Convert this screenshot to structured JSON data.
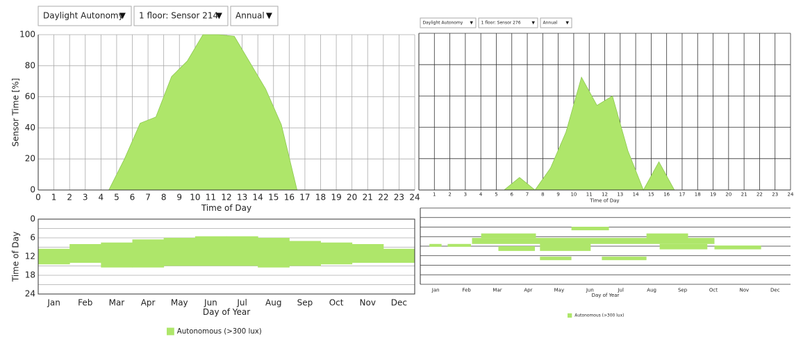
{
  "controls": [
    [
      "Daylight Autonomy",
      "1 floor: Sensor 214",
      "Annual"
    ],
    [
      "Daylight Autonomy",
      "1 floor: Sensor 276",
      "Annual"
    ]
  ],
  "chart_data": [
    {
      "type": "area",
      "x_label": "Time of Day",
      "y_label": "Sensor Time [%]",
      "x": [
        0,
        4.5,
        5.5,
        6.5,
        7.5,
        8.5,
        9.5,
        10.5,
        11.5,
        12.5,
        13.5,
        14.5,
        15.5,
        16.5,
        24
      ],
      "values": [
        0,
        0,
        20,
        43,
        47,
        73,
        83,
        100,
        100,
        99,
        82,
        65,
        42,
        0,
        0
      ],
      "color": "#aee66a",
      "xlim": [
        0,
        24
      ],
      "ylim": [
        0,
        100
      ],
      "xticks": [
        0,
        1,
        2,
        3,
        4,
        5,
        6,
        7,
        8,
        9,
        10,
        11,
        12,
        13,
        14,
        15,
        16,
        17,
        18,
        19,
        20,
        21,
        22,
        23,
        24
      ],
      "yticks": [
        0,
        20,
        40,
        60,
        80,
        100
      ],
      "grid": true
    },
    {
      "type": "band",
      "x_label": "Day of Year",
      "y_label": "Time of Day",
      "categories": [
        "Jan",
        "Feb",
        "Mar",
        "Apr",
        "May",
        "Jun",
        "Jul",
        "Aug",
        "Sep",
        "Oct",
        "Nov",
        "Dec"
      ],
      "ylim": [
        24,
        0
      ],
      "yticks": [
        0,
        6,
        12,
        18,
        24
      ],
      "ygrid": [
        3,
        9,
        15,
        21
      ],
      "series": [
        {
          "name": "Autonomous (>300 lux)",
          "color": "#aee66a",
          "start": [
            9.5,
            8,
            7.5,
            6.5,
            6,
            5.5,
            5.5,
            6,
            7,
            7.5,
            8,
            9.5
          ],
          "end": [
            14.5,
            14,
            15.5,
            15.5,
            15,
            15,
            15,
            15.5,
            15,
            14.5,
            14,
            14
          ]
        }
      ]
    },
    {
      "type": "area",
      "x_label": "Time of Day",
      "x": [
        0,
        5.5,
        6.5,
        7.5,
        8.5,
        9.5,
        10.5,
        11.5,
        12.5,
        13.5,
        14.5,
        15.5,
        16.5,
        24
      ],
      "values": [
        0,
        0,
        8,
        0,
        14,
        37,
        72,
        54,
        60,
        25,
        0,
        18,
        0,
        0
      ],
      "color": "#aee66a",
      "xlim": [
        0,
        24
      ],
      "ylim": [
        0,
        100
      ],
      "xticks": [
        1,
        2,
        3,
        4,
        5,
        6,
        7,
        8,
        9,
        10,
        11,
        12,
        13,
        14,
        15,
        16,
        17,
        18,
        19,
        20,
        21,
        22,
        23,
        24
      ],
      "ygrid": [
        0,
        20,
        40,
        60,
        80,
        100
      ],
      "grid": true
    },
    {
      "type": "segments",
      "x_label": "Day of Year",
      "categories": [
        "Jan",
        "Feb",
        "Mar",
        "Apr",
        "May",
        "Jun",
        "Jul",
        "Aug",
        "Sep",
        "Oct",
        "Nov",
        "Dec"
      ],
      "xlim": [
        0,
        365
      ],
      "ylim": [
        24,
        0
      ],
      "ygrid": [
        0,
        3,
        6,
        9,
        12,
        15,
        18,
        21,
        24
      ],
      "series": [
        {
          "name": "Autonomous (>300 lux)",
          "color": "#aee66a",
          "segments": [
            {
              "x0": 9,
              "x1": 21,
              "y0": 11.3,
              "y1": 12.2
            },
            {
              "x0": 27,
              "x1": 50,
              "y0": 11.3,
              "y1": 12.2
            },
            {
              "x0": 51,
              "x1": 290,
              "y0": 9.4,
              "y1": 11.3
            },
            {
              "x0": 60,
              "x1": 114,
              "y0": 8,
              "y1": 9.4
            },
            {
              "x0": 77,
              "x1": 113,
              "y0": 12,
              "y1": 13.5
            },
            {
              "x0": 118,
              "x1": 168,
              "y0": 11,
              "y1": 13.5
            },
            {
              "x0": 118,
              "x1": 149,
              "y0": 15.3,
              "y1": 16.4
            },
            {
              "x0": 149,
              "x1": 186,
              "y0": 5.9,
              "y1": 7
            },
            {
              "x0": 179,
              "x1": 223,
              "y0": 15.3,
              "y1": 16.4
            },
            {
              "x0": 223,
              "x1": 264,
              "y0": 8,
              "y1": 10
            },
            {
              "x0": 236,
              "x1": 283,
              "y0": 11.3,
              "y1": 13
            },
            {
              "x0": 290,
              "x1": 336,
              "y0": 11.8,
              "y1": 13
            }
          ]
        }
      ]
    }
  ]
}
